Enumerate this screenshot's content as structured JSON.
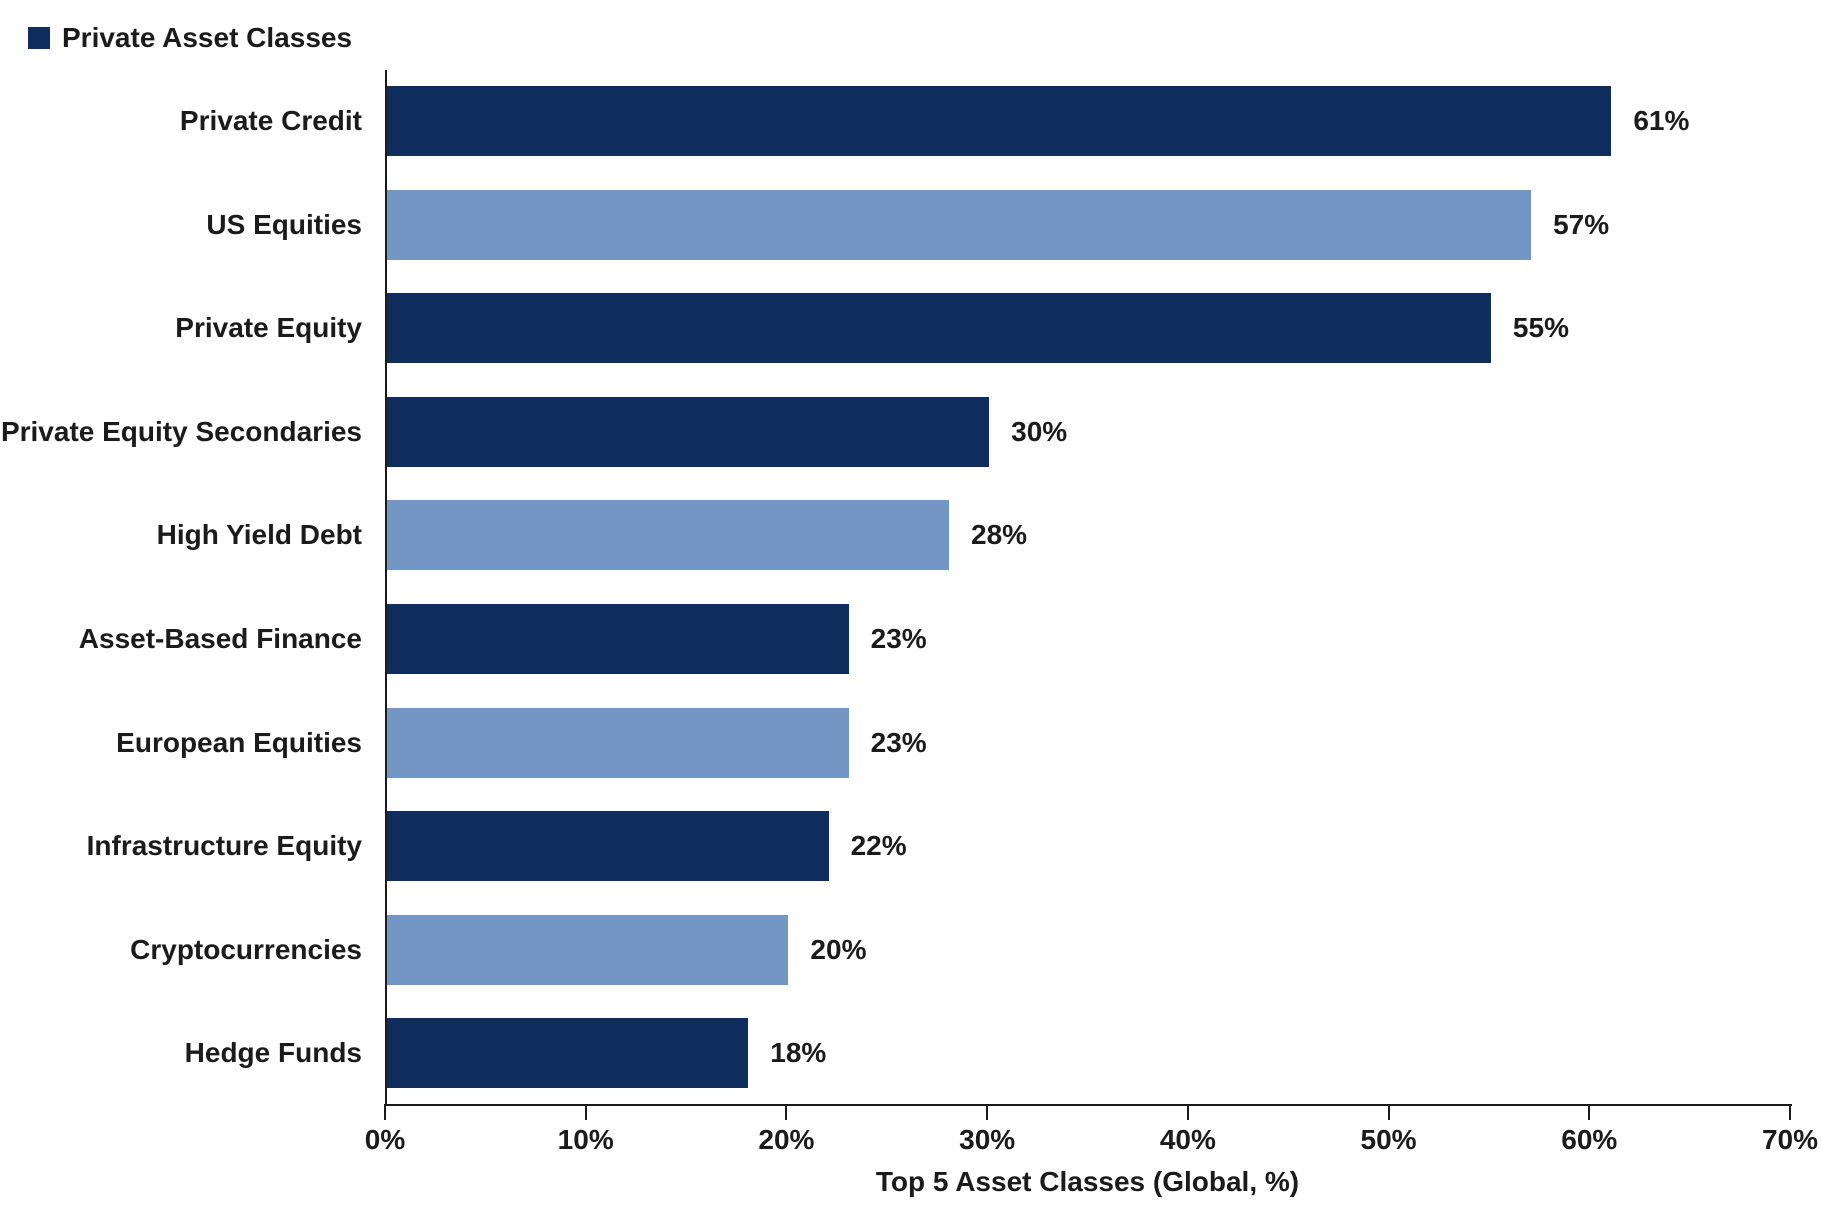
{
  "colors": {
    "private_dark_navy": "#102E5D",
    "other_light_blue": "#7396C4",
    "axis": "#1b1b1b",
    "text": "#1b1b1b",
    "background": "#ffffff"
  },
  "legend": {
    "label": "Private Asset Classes",
    "swatch_color": "#102E5D"
  },
  "chart_data": {
    "type": "bar",
    "orientation": "horizontal",
    "title": "",
    "xlabel": "Top 5 Asset Classes (Global, %)",
    "ylabel": "",
    "xlim": [
      0,
      70
    ],
    "xticks": [
      "0%",
      "10%",
      "20%",
      "30%",
      "40%",
      "50%",
      "60%",
      "70%"
    ],
    "xtick_values": [
      0,
      10,
      20,
      30,
      40,
      50,
      60,
      70
    ],
    "grid": false,
    "legend_position": "top-left",
    "legend_entries": [
      "Private Asset Classes"
    ],
    "categories": [
      "Private Credit",
      "US Equities",
      "Private Equity",
      "Private Equity Secondaries",
      "High Yield Debt",
      "Asset-Based Finance",
      "European Equities",
      "Infrastructure Equity",
      "Cryptocurrencies",
      "Hedge Funds"
    ],
    "values": [
      61,
      57,
      55,
      30,
      28,
      23,
      23,
      22,
      20,
      18
    ],
    "value_labels": [
      "61%",
      "57%",
      "55%",
      "30%",
      "28%",
      "23%",
      "23%",
      "22%",
      "20%",
      "18%"
    ],
    "is_private_asset_class": [
      true,
      false,
      true,
      true,
      false,
      true,
      false,
      true,
      false,
      true
    ]
  }
}
